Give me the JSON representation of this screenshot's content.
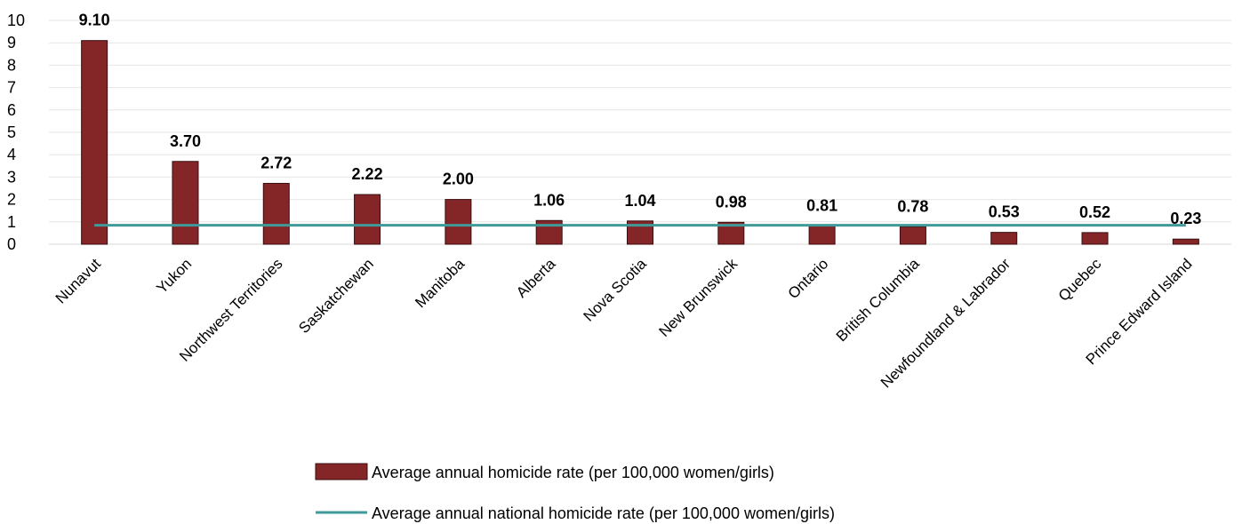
{
  "chart_data": {
    "type": "bar",
    "categories": [
      "Nunavut",
      "Yukon",
      "Northwest Territories",
      "Saskatchewan",
      "Manitoba",
      "Alberta",
      "Nova Scotia",
      "New Brunswick",
      "Ontario",
      "British Columbia",
      "Newfoundland & Labrador",
      "Quebec",
      "Prince Edward Island"
    ],
    "series": [
      {
        "name": "Average annual homicide rate (per 100,000 women/girls)",
        "type": "bar",
        "color": "#842528",
        "values": [
          9.1,
          3.7,
          2.72,
          2.22,
          2.0,
          1.06,
          1.04,
          0.98,
          0.81,
          0.78,
          0.53,
          0.52,
          0.23
        ],
        "labels": [
          "9.10",
          "3.70",
          "2.72",
          "2.22",
          "2.00",
          "1.06",
          "1.04",
          "0.98",
          "0.81",
          "0.78",
          "0.53",
          "0.52",
          "0.23"
        ]
      },
      {
        "name": "Average annual national homicide rate (per 100,000 women/girls)",
        "type": "line",
        "color": "#3f9a99",
        "value": 0.85
      }
    ],
    "ylim": [
      0,
      10
    ],
    "yticks": [
      "0",
      "1",
      "2",
      "3",
      "4",
      "5",
      "6",
      "7",
      "8",
      "9",
      "10"
    ],
    "grid": true,
    "legend_position": "bottom"
  }
}
